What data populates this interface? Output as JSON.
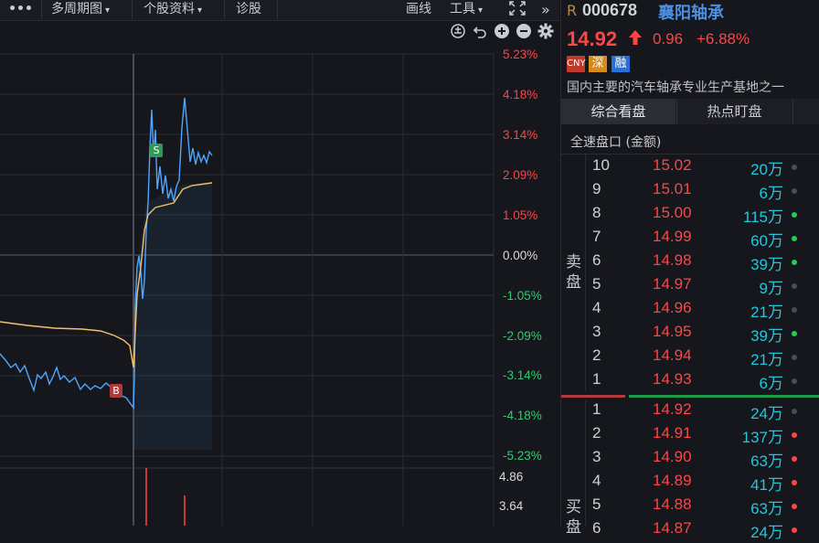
{
  "toolbar": {
    "more_label": "•••",
    "period_label": "多周期图",
    "stock_info_label": "个股资料",
    "diagnose_label": "诊股",
    "draw_line_label": "画线",
    "tools_label": "工具"
  },
  "chart": {
    "pct_labels": [
      "5.23%",
      "4.18%",
      "3.14%",
      "2.09%",
      "1.05%",
      "0.00%",
      "-1.05%",
      "-2.09%",
      "-3.14%",
      "-4.18%",
      "-5.23%"
    ],
    "volume_labels": [
      "4.86",
      "3.64"
    ],
    "buy_marker": "B",
    "sell_marker": "S"
  },
  "colors": {
    "up": "#ff4444",
    "down": "#2ecc71",
    "price_line": "#4da6ff",
    "avg_line": "#f0c070",
    "volume_cyan": "#26c6da"
  },
  "stock": {
    "badge": "R",
    "code": "000678",
    "name": "襄阳轴承",
    "price": "14.92",
    "change": "0.96",
    "change_pct": "+6.88%",
    "tags": [
      "CNY",
      "深",
      "融"
    ],
    "description": "国内主要的汽车轴承专业生产基地之一"
  },
  "tabs": [
    "综合看盘",
    "热点盯盘"
  ],
  "panel_title": "全速盘口 (金额)",
  "sell_label": [
    "卖",
    "盘"
  ],
  "buy_label": [
    "买",
    "盘"
  ],
  "sell_levels": [
    {
      "level": "10",
      "price": "15.02",
      "vol": "20万",
      "dot": "n"
    },
    {
      "level": "9",
      "price": "15.01",
      "vol": "6万",
      "dot": "n"
    },
    {
      "level": "8",
      "price": "15.00",
      "vol": "115万",
      "dot": "g"
    },
    {
      "level": "7",
      "price": "14.99",
      "vol": "60万",
      "dot": "g"
    },
    {
      "level": "6",
      "price": "14.98",
      "vol": "39万",
      "dot": "g"
    },
    {
      "level": "5",
      "price": "14.97",
      "vol": "9万",
      "dot": "n"
    },
    {
      "level": "4",
      "price": "14.96",
      "vol": "21万",
      "dot": "n"
    },
    {
      "level": "3",
      "price": "14.95",
      "vol": "39万",
      "dot": "g"
    },
    {
      "level": "2",
      "price": "14.94",
      "vol": "21万",
      "dot": "n"
    },
    {
      "level": "1",
      "price": "14.93",
      "vol": "6万",
      "dot": "n"
    }
  ],
  "buy_levels": [
    {
      "level": "1",
      "price": "14.92",
      "vol": "24万",
      "dot": "n"
    },
    {
      "level": "2",
      "price": "14.91",
      "vol": "137万",
      "dot": "r"
    },
    {
      "level": "3",
      "price": "14.90",
      "vol": "63万",
      "dot": "r"
    },
    {
      "level": "4",
      "price": "14.89",
      "vol": "41万",
      "dot": "r"
    },
    {
      "level": "5",
      "price": "14.88",
      "vol": "63万",
      "dot": "r"
    },
    {
      "level": "6",
      "price": "14.87",
      "vol": "24万",
      "dot": "r"
    }
  ]
}
